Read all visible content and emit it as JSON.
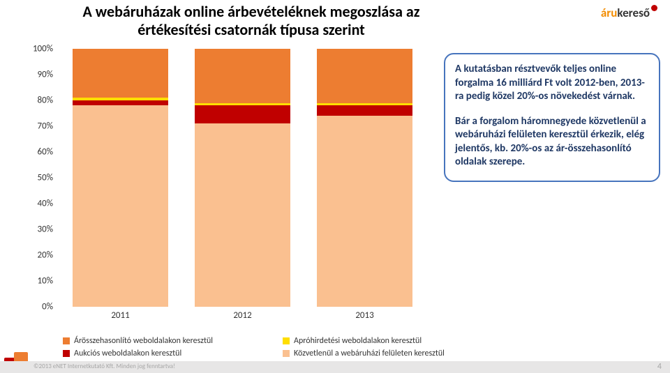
{
  "title": "A webáruházak online árbevételéknek megoszlása az értékesítési csatornák típusa szerint",
  "brand": {
    "part1": "áru",
    "part2": "kereső"
  },
  "chart": {
    "type": "stacked-bar-100",
    "ymin": 0,
    "ymax": 100,
    "ytick_step": 10,
    "ylabels": [
      "0%",
      "10%",
      "20%",
      "30%",
      "40%",
      "50%",
      "60%",
      "70%",
      "80%",
      "90%",
      "100%"
    ],
    "categories": [
      "2011",
      "2012",
      "2013"
    ],
    "series": [
      {
        "name": "Árösszehasonlító weboldalakon keresztül",
        "color": "#ed7d31",
        "values": [
          19,
          21,
          21
        ]
      },
      {
        "name": "Apróhirdetési weboldalakon keresztül",
        "color": "#ffde00",
        "values": [
          1,
          1,
          1
        ]
      },
      {
        "name": "Aukciós weboldalakon keresztül",
        "color": "#c00000",
        "values": [
          2,
          7,
          4
        ]
      },
      {
        "name": "Közvetlenül a webáruházi felületen keresztül",
        "color": "#fac090",
        "values": [
          78,
          71,
          74
        ]
      }
    ],
    "plot_background": "#ffffff",
    "grid": false,
    "bar_width_ratio": 0.26,
    "label_fontsize": 13
  },
  "callout": {
    "border_color": "#4774bd",
    "text_color": "#1f3864",
    "fontsize": 15,
    "paragraphs": [
      "A kutatásban résztvevők teljes online forgalma 16 milliárd Ft volt 2012-ben, 2013-ra pedig közel 20%-os növekedést várnak.",
      "Bár a forgalom háromnegyede közvetlenül a webáruházi felületen keresztül érkezik, elég jelentős, kb. 20%-os az ár-összehasonlító oldalak szerepe."
    ]
  },
  "legend": [
    {
      "label": "Árösszehasonlító weboldalakon keresztül",
      "color": "#ed7d31"
    },
    {
      "label": "Apróhirdetési weboldalakon keresztül",
      "color": "#ffde00"
    },
    {
      "label": "Aukciós weboldalakon keresztül",
      "color": "#c00000"
    },
    {
      "label": "Közvetlenül a webáruházi felületen keresztül",
      "color": "#fac090"
    }
  ],
  "footer": {
    "copyright": "©2013 eNET Internetkutató Kft. Minden jog fenntartva!",
    "page": "4"
  },
  "footer_logo": {
    "color1": "#c00000",
    "color2": "#ed7d31"
  }
}
